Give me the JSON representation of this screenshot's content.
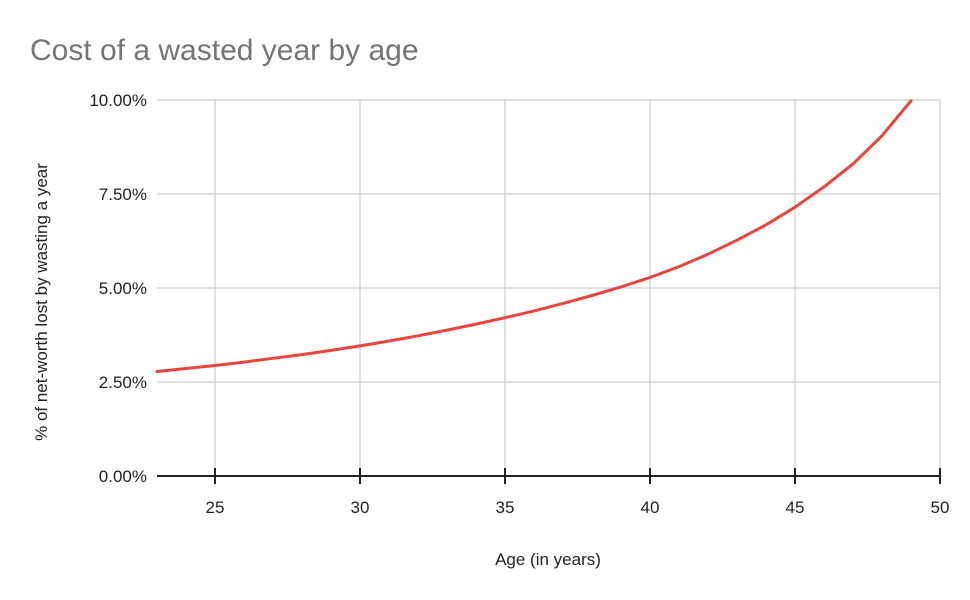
{
  "chart_data": {
    "type": "line",
    "title": "Cost of a wasted year by age",
    "xlabel": "Age (in years)",
    "ylabel": "% of net-worth lost by wasting a year",
    "xlim": [
      23,
      50
    ],
    "ylim": [
      0,
      10
    ],
    "x_ticks": [
      25,
      30,
      35,
      40,
      45,
      50
    ],
    "y_ticks": [
      0,
      2.5,
      5,
      7.5,
      10
    ],
    "y_tick_labels": [
      "0.00%",
      "2.50%",
      "5.00%",
      "7.50%",
      "10.00%"
    ],
    "grid": true,
    "legend": "none",
    "series": [
      {
        "color": "#e8453c",
        "x": [
          23,
          24,
          25,
          26,
          27,
          28,
          29,
          30,
          31,
          32,
          33,
          34,
          35,
          36,
          37,
          38,
          39,
          40,
          41,
          42,
          43,
          44,
          45,
          46,
          47,
          48,
          49
        ],
        "y": [
          2.78,
          2.86,
          2.94,
          3.03,
          3.13,
          3.23,
          3.34,
          3.46,
          3.59,
          3.73,
          3.88,
          4.04,
          4.21,
          4.39,
          4.59,
          4.8,
          5.03,
          5.28,
          5.57,
          5.9,
          6.27,
          6.68,
          7.15,
          7.69,
          8.3,
          9.05,
          9.98
        ]
      }
    ]
  }
}
